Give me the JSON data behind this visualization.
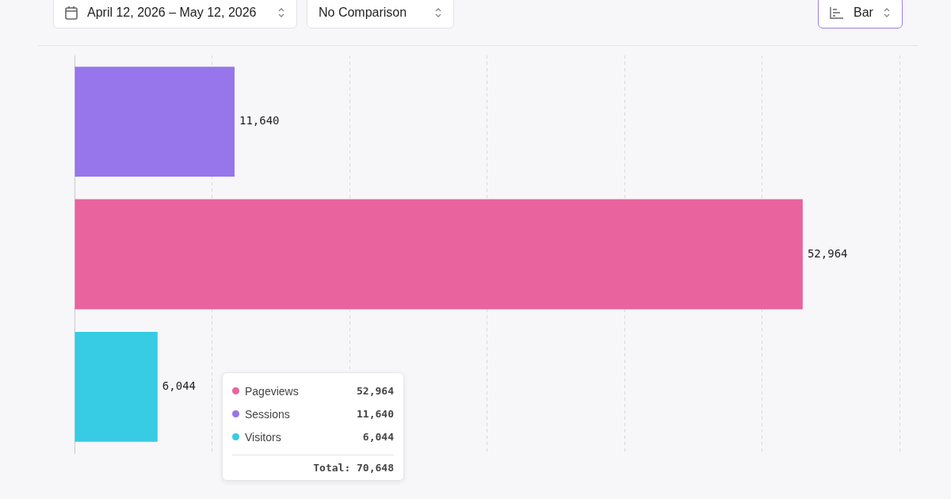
{
  "chart_data": {
    "type": "bar",
    "orientation": "horizontal",
    "stacked": true,
    "categories": [
      null,
      null,
      null
    ],
    "series": [
      {
        "name": "Pageviews",
        "color": "#e9639e",
        "values": [
          null,
          52964,
          null
        ],
        "value_labels": [
          null,
          "52,964",
          null
        ]
      },
      {
        "name": "Sessions",
        "color": "#9775ea",
        "values": [
          11640,
          null,
          null
        ],
        "value_labels": [
          "11,640",
          null,
          null
        ]
      },
      {
        "name": "Visitors",
        "color": "#37cce4",
        "values": [
          null,
          null,
          6044
        ],
        "value_labels": [
          null,
          null,
          "6,044"
        ]
      }
    ],
    "tick_labels": false,
    "grid": "x",
    "legend": "bottom left",
    "annotations": [
      "April 12, 2026 – May 12, 2026",
      "No Comparison",
      "Bar",
      "Total: 70,648"
    ]
  }
}
